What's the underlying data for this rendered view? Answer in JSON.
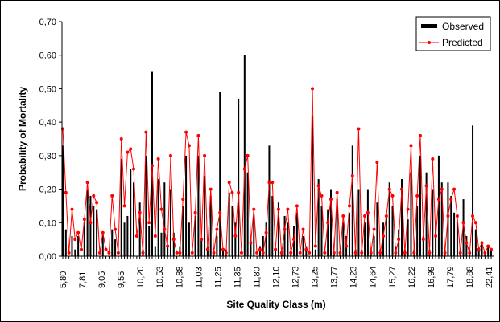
{
  "chart_data": {
    "type": "bar+line",
    "title": "",
    "xlabel": "Site Quality Class (m)",
    "ylabel": "Probability of Mortality",
    "ylim": [
      0,
      0.7
    ],
    "yticks": [
      "0,00",
      "0,10",
      "0,20",
      "0,30",
      "0,40",
      "0,50",
      "0,60",
      "0,70"
    ],
    "xtick_labels": [
      "5,80",
      "7,81",
      "9,05",
      "9,55",
      "10,20",
      "10,53",
      "10,88",
      "11,03",
      "11,25",
      "11,35",
      "11,80",
      "12,10",
      "12,73",
      "13,25",
      "13,77",
      "14,23",
      "14,64",
      "15,27",
      "16,22",
      "16,99",
      "17,79",
      "18,88",
      "22,41"
    ],
    "legend_position": "top-right",
    "colors": {
      "observed": "#000000",
      "predicted": "#ff0000"
    },
    "series": [
      {
        "name": "Observed",
        "kind": "bar",
        "values": [
          0.33,
          0.08,
          0.0,
          0.06,
          0.02,
          0.06,
          0.0,
          0.1,
          0.2,
          0.18,
          0.15,
          0.14,
          0.0,
          0.07,
          0.0,
          0.0,
          0.08,
          0.05,
          0.0,
          0.29,
          0.1,
          0.12,
          0.26,
          0.22,
          0.0,
          0.16,
          0.02,
          0.3,
          0.09,
          0.55,
          0.03,
          0.23,
          0.07,
          0.22,
          0.03,
          0.2,
          0.07,
          0.0,
          0.03,
          0.15,
          0.3,
          0.1,
          0.0,
          0.12,
          0.3,
          0.05,
          0.24,
          0.03,
          0.18,
          0.02,
          0.06,
          0.49,
          0.02,
          0.02,
          0.19,
          0.15,
          0.1,
          0.47,
          0.0,
          0.6,
          0.25,
          0.05,
          0.12,
          0.0,
          0.03,
          0.06,
          0.1,
          0.33,
          0.18,
          0.02,
          0.16,
          0.01,
          0.12,
          0.1,
          0.01,
          0.09,
          0.13,
          0.0,
          0.06,
          0.03,
          0.0,
          0.42,
          0.02,
          0.23,
          0.15,
          0.0,
          0.14,
          0.2,
          0.01,
          0.17,
          0.01,
          0.1,
          0.06,
          0.13,
          0.33,
          0.02,
          0.2,
          0.02,
          0.1,
          0.2,
          0.02,
          0.06,
          0.16,
          0.02,
          0.1,
          0.12,
          0.22,
          0.15,
          0.03,
          0.08,
          0.23,
          0.02,
          0.11,
          0.25,
          0.02,
          0.15,
          0.3,
          0.06,
          0.25,
          0.02,
          0.2,
          0.1,
          0.3,
          0.22,
          0.02,
          0.22,
          0.18,
          0.13,
          0.1,
          0.02,
          0.17,
          0.06,
          0.02,
          0.39,
          0.08,
          0.02,
          0.04,
          0.01,
          0.03,
          0.02
        ]
      },
      {
        "name": "Predicted",
        "kind": "line",
        "values": [
          0.38,
          0.19,
          0.01,
          0.14,
          0.05,
          0.07,
          0.02,
          0.11,
          0.22,
          0.1,
          0.18,
          0.16,
          0.01,
          0.07,
          0.02,
          0.01,
          0.18,
          0.08,
          0.01,
          0.35,
          0.15,
          0.31,
          0.32,
          0.26,
          0.06,
          0.13,
          0.01,
          0.37,
          0.1,
          0.27,
          0.06,
          0.29,
          0.14,
          0.08,
          0.03,
          0.3,
          0.05,
          0.01,
          0.01,
          0.17,
          0.37,
          0.33,
          0.01,
          0.13,
          0.36,
          0.05,
          0.3,
          0.02,
          0.2,
          0.01,
          0.08,
          0.13,
          0.02,
          0.01,
          0.22,
          0.19,
          0.06,
          0.19,
          0.01,
          0.26,
          0.3,
          0.04,
          0.14,
          0.01,
          0.02,
          0.01,
          0.07,
          0.22,
          0.22,
          0.02,
          0.14,
          0.01,
          0.08,
          0.14,
          0.01,
          0.05,
          0.15,
          0.01,
          0.08,
          0.02,
          0.01,
          0.5,
          0.03,
          0.21,
          0.18,
          0.01,
          0.1,
          0.17,
          0.01,
          0.19,
          0.01,
          0.12,
          0.03,
          0.15,
          0.24,
          0.01,
          0.38,
          0.01,
          0.12,
          0.13,
          0.01,
          0.08,
          0.28,
          0.01,
          0.06,
          0.12,
          0.2,
          0.18,
          0.01,
          0.05,
          0.2,
          0.01,
          0.14,
          0.33,
          0.01,
          0.18,
          0.36,
          0.05,
          0.21,
          0.01,
          0.29,
          0.06,
          0.17,
          0.2,
          0.01,
          0.12,
          0.17,
          0.2,
          0.12,
          0.01,
          0.1,
          0.04,
          0.01,
          0.12,
          0.1,
          0.02,
          0.04,
          0.01,
          0.03,
          0.02
        ]
      }
    ]
  }
}
